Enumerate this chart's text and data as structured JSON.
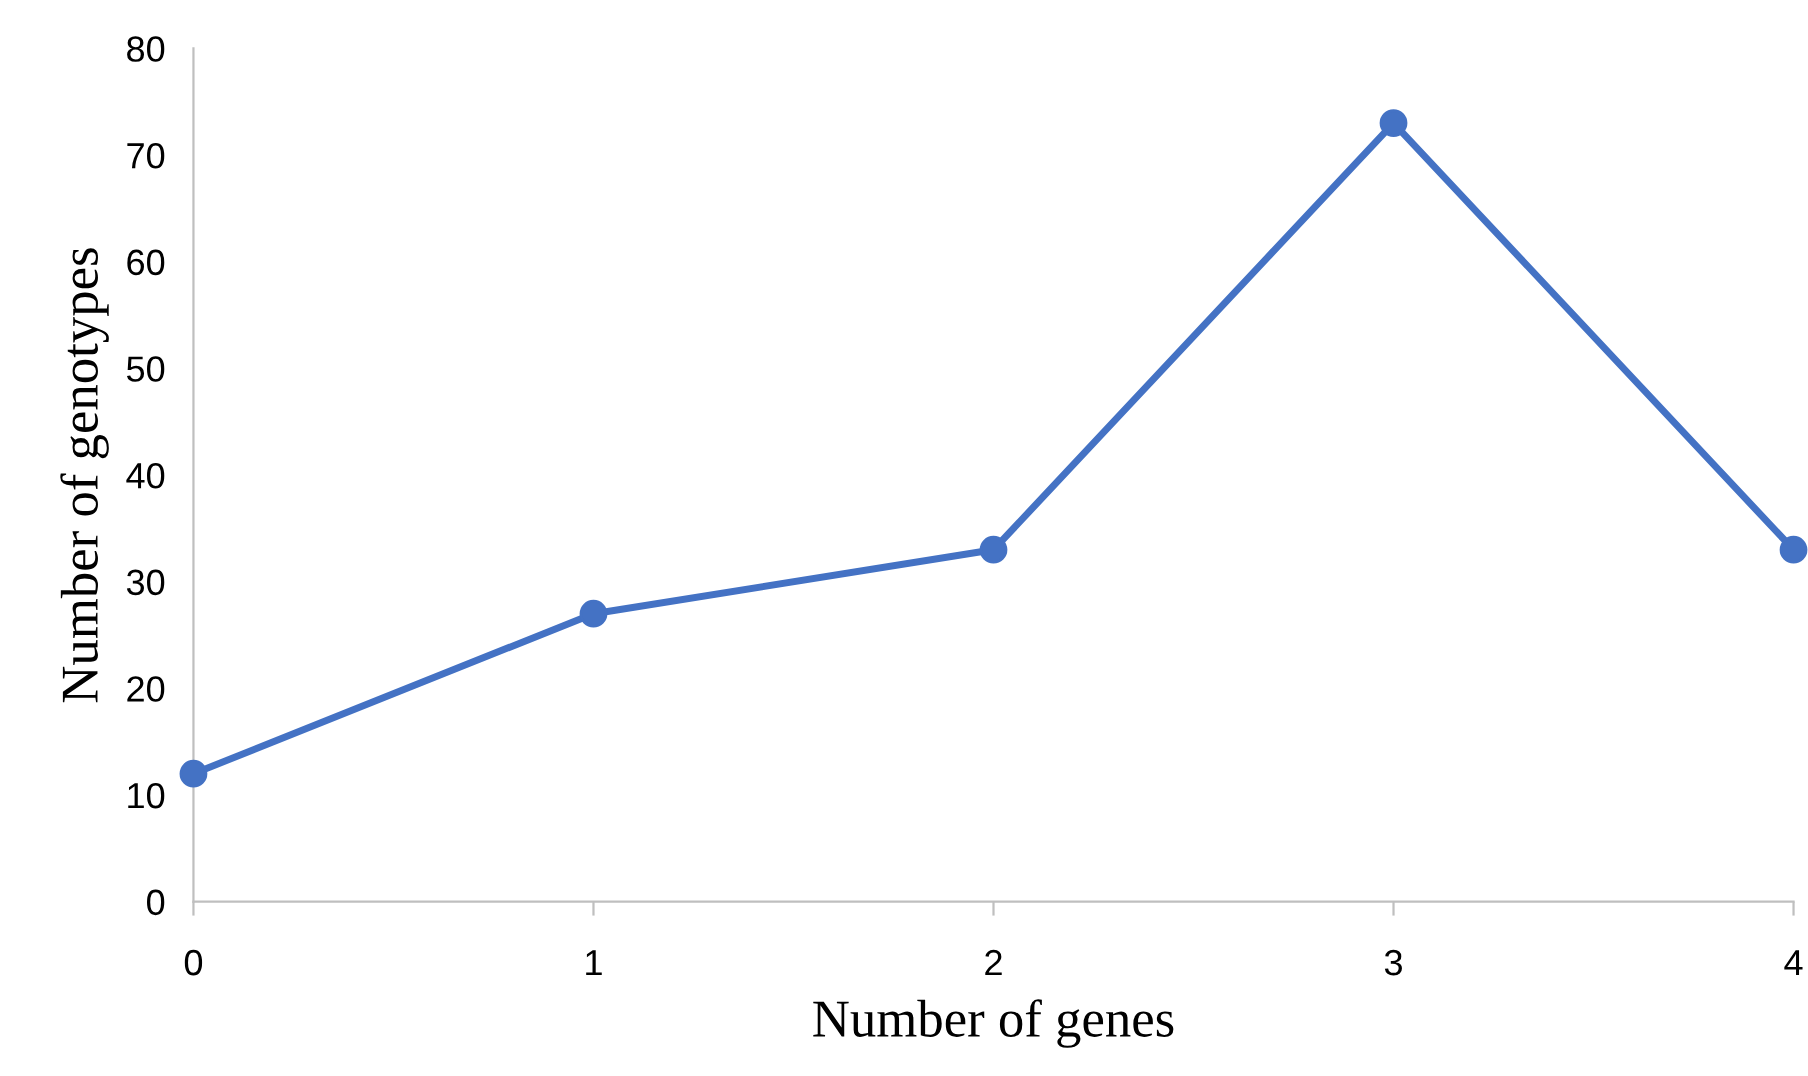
{
  "chart_data": {
    "type": "line",
    "xlabel": "Number of genes",
    "ylabel": "Number of genotypes",
    "x": [
      0,
      1,
      2,
      3,
      4
    ],
    "series": [
      {
        "color": "#4472c4",
        "values": [
          12,
          27,
          33,
          73,
          33
        ]
      }
    ],
    "xlim": [
      0,
      4
    ],
    "xticks": [
      0,
      1,
      2,
      3,
      4
    ],
    "ylim": [
      0,
      80
    ],
    "yticks": [
      0,
      10,
      20,
      30,
      40,
      50,
      60,
      70,
      80
    ],
    "grid": false,
    "legend": false,
    "marker": "circle",
    "line_style": "solid"
  }
}
